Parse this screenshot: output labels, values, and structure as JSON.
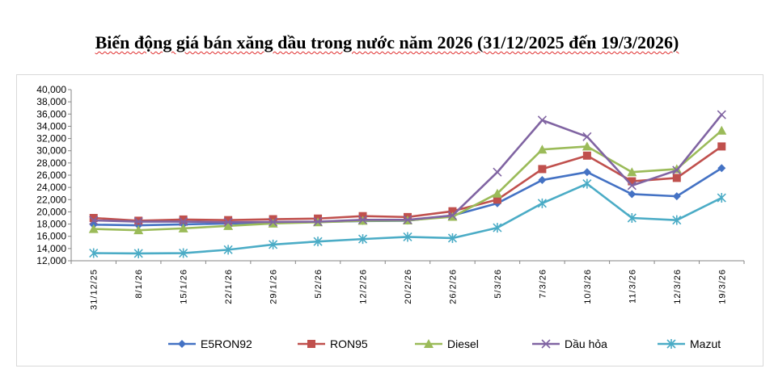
{
  "title": "Biến động giá bán xăng dầu trong nước năm 2026 (31/12/2025 đến 19/3/2026)",
  "chart_data": {
    "type": "line",
    "title": "Biến động giá bán xăng dầu trong nước năm 2026 (31/12/2025 đến 19/3/2026)",
    "categories": [
      "31/12/25",
      "8/1/26",
      "15/1/26",
      "22/1/26",
      "29/1/26",
      "5/2/26",
      "12/2/26",
      "20/2/26",
      "26/2/26",
      "5/3/26",
      "7/3/26",
      "10/3/26",
      "11/3/26",
      "12/3/26",
      "19/3/26"
    ],
    "ylim": [
      12000,
      40000
    ],
    "yticks": [
      "12,000",
      "14,000",
      "16,000",
      "18,000",
      "20,000",
      "22,000",
      "24,000",
      "26,000",
      "28,000",
      "30,000",
      "32,000",
      "34,000",
      "36,000",
      "38,000",
      "40,000"
    ],
    "grid": false,
    "legend": "bottom",
    "series": [
      {
        "name": "E5RON92",
        "color": "#4472C4",
        "marker": "diamond",
        "values": [
          17900,
          17800,
          17950,
          18100,
          18200,
          18350,
          18500,
          18550,
          19400,
          21400,
          25200,
          26500,
          22900,
          22550,
          27150
        ]
      },
      {
        "name": "RON95",
        "color": "#C0504D",
        "marker": "square",
        "values": [
          19000,
          18550,
          18750,
          18650,
          18800,
          18900,
          19300,
          19150,
          20100,
          22000,
          27000,
          29200,
          25000,
          25550,
          30700
        ]
      },
      {
        "name": "Diesel",
        "color": "#9BBB59",
        "marker": "triangle",
        "values": [
          17200,
          17000,
          17300,
          17700,
          18100,
          18300,
          18550,
          18600,
          19200,
          23000,
          30200,
          30700,
          26500,
          27000,
          33300
        ]
      },
      {
        "name": "Dầu hỏa",
        "color": "#8064A2",
        "marker": "x",
        "values": [
          18600,
          18400,
          18400,
          18300,
          18350,
          18400,
          18700,
          18700,
          19400,
          26500,
          35000,
          32300,
          24300,
          26800,
          35900
        ]
      },
      {
        "name": "Mazut",
        "color": "#4BACC6",
        "marker": "star",
        "values": [
          13250,
          13200,
          13250,
          13800,
          14650,
          15150,
          15550,
          15900,
          15700,
          17400,
          21400,
          24600,
          19000,
          18650,
          22300
        ]
      }
    ]
  }
}
